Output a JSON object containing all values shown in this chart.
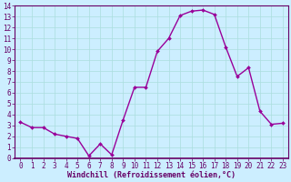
{
  "x": [
    0,
    1,
    2,
    3,
    4,
    5,
    6,
    7,
    8,
    9,
    10,
    11,
    12,
    13,
    14,
    15,
    16,
    17,
    18,
    19,
    20,
    21,
    22,
    23
  ],
  "y": [
    3.3,
    2.8,
    2.8,
    2.2,
    2.0,
    1.8,
    0.2,
    1.3,
    0.3,
    3.5,
    6.5,
    6.5,
    9.8,
    11.0,
    13.1,
    13.5,
    13.6,
    13.2,
    10.2,
    7.5,
    8.3,
    4.3,
    3.1,
    3.2
  ],
  "line_color": "#990099",
  "marker": "D",
  "marker_size": 2.0,
  "bg_color": "#cceeff",
  "grid_color": "#aadddd",
  "xlabel": "Windchill (Refroidissement éolien,°C)",
  "xlabel_fontsize": 6.0,
  "tick_color": "#660066",
  "xtick_labels": [
    "0",
    "1",
    "2",
    "3",
    "4",
    "5",
    "6",
    "7",
    "8",
    "9",
    "10",
    "11",
    "12",
    "13",
    "14",
    "15",
    "16",
    "17",
    "18",
    "19",
    "20",
    "21",
    "22",
    "23"
  ],
  "ylim": [
    0,
    14
  ],
  "ytick_vals": [
    0,
    1,
    2,
    3,
    4,
    5,
    6,
    7,
    8,
    9,
    10,
    11,
    12,
    13,
    14
  ],
  "ytick_fontsize": 5.5,
  "xtick_fontsize": 5.5,
  "line_width": 1.0,
  "spine_color": "#660066"
}
